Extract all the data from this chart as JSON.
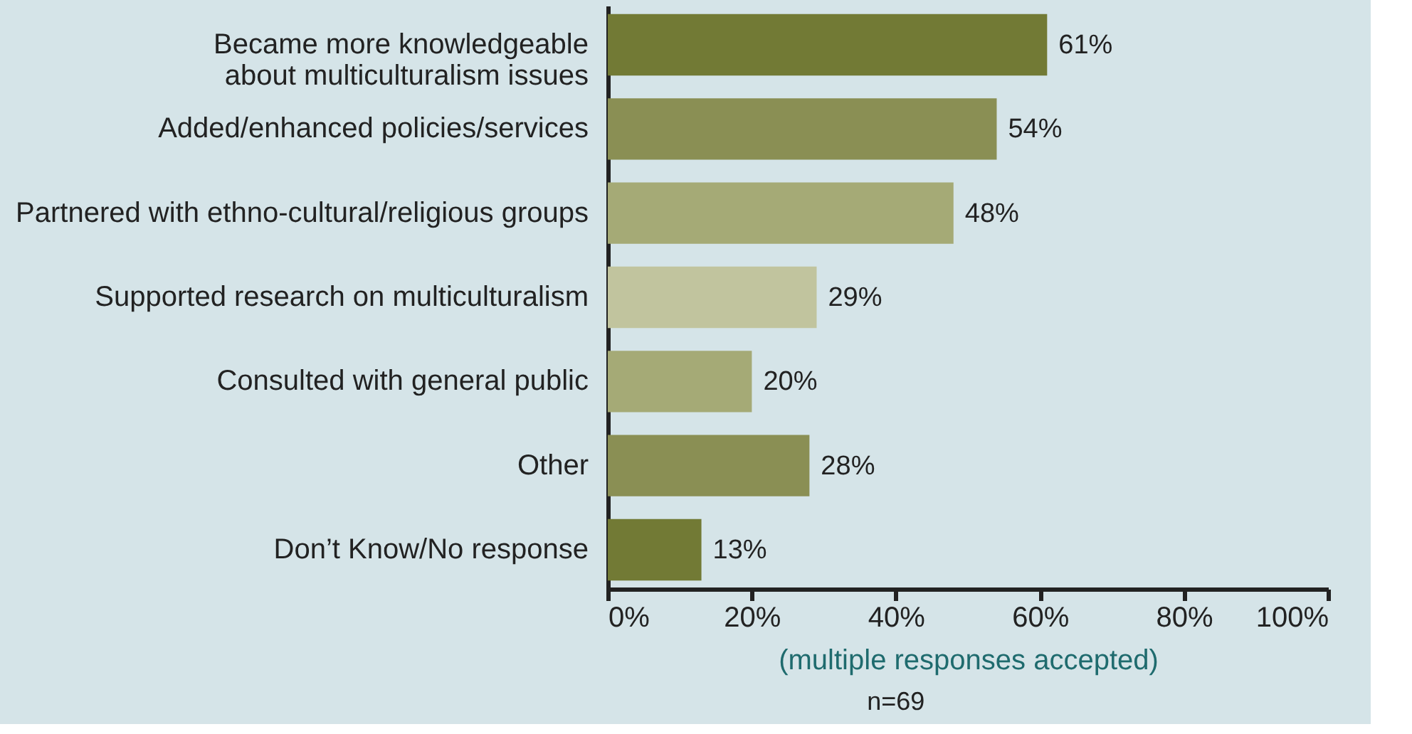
{
  "chart_data": {
    "type": "bar",
    "orientation": "horizontal",
    "xlabel": "(multiple responses accepted)",
    "categories": [
      "Became more knowledgeable\nabout multiculturalism issues",
      "Added/enhanced policies/services",
      "Partnered with ethno-cultural/religious groups",
      "Supported research on multiculturalism",
      "Consulted with general public",
      "Other",
      "Don’t Know/No response"
    ],
    "values": [
      61,
      54,
      48,
      29,
      20,
      28,
      13
    ],
    "value_labels": [
      "61%",
      "54%",
      "48%",
      "29%",
      "20%",
      "28%",
      "13%"
    ],
    "colors": [
      "#727a35",
      "#8a8f54",
      "#a5aa76",
      "#c1c49e",
      "#a5aa76",
      "#8a8f54",
      "#727a35"
    ],
    "xlim": [
      0,
      100
    ],
    "xticks": [
      {
        "value": 0,
        "label": "0%"
      },
      {
        "value": 20,
        "label": "20%"
      },
      {
        "value": 40,
        "label": "40%"
      },
      {
        "value": 60,
        "label": "60%"
      },
      {
        "value": 80,
        "label": "80%"
      },
      {
        "value": 100,
        "label": "100%"
      }
    ],
    "grid": false,
    "annotations": [
      "n=69"
    ]
  }
}
